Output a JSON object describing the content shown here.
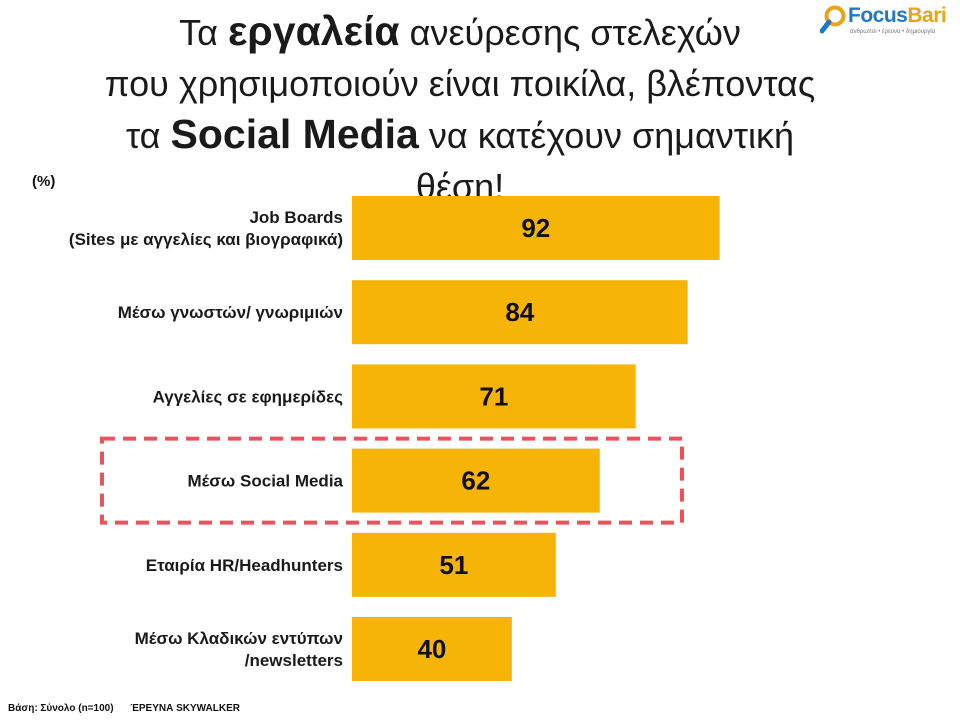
{
  "title": {
    "line1_pre": "Τα ",
    "line1_emph": "εργαλεία",
    "line1_post": " ανεύρεσης στελεχών",
    "line2": "που χρησιμοποιούν είναι ποικίλα, βλέποντας",
    "line3_pre": "τα ",
    "line3_emph": "Social Media",
    "line3_post": " να κατέχουν σημαντική θέση!"
  },
  "logo": {
    "name_part1": "Focus",
    "name_part2": "Bari",
    "tagline": "άνθρωποι • έρευνα • δημιουργία",
    "icon": "magnifier-icon",
    "colors": {
      "part1": "#1f78c8",
      "part2": "#e8a317"
    }
  },
  "unit_label": "(%)",
  "colors": {
    "bar": "#f6b407",
    "highlight_border": "#e8545a"
  },
  "chart_data": {
    "type": "bar",
    "orientation": "horizontal",
    "categories": [
      [
        "Job Boards",
        "(Sites με αγγελίες και βιογραφικά)"
      ],
      [
        "Μέσω γνωστών/ γνωριμιών"
      ],
      [
        "Αγγελίες σε εφημερίδες"
      ],
      [
        "Μέσω Social Media"
      ],
      [
        "Εταιρία  HR/Headhunters"
      ],
      [
        "Μέσω Κλαδικών εντύπων",
        "/newsletters"
      ]
    ],
    "values": [
      92,
      84,
      71,
      62,
      51,
      40
    ],
    "highlighted_index": 3,
    "xlim": [
      0,
      100
    ],
    "grid": false,
    "title": "",
    "xlabel": "",
    "ylabel": ""
  },
  "footer": {
    "base": "Βάση: Σύνολο (n=100)",
    "source": "ΈΡΕΥΝΑ SKYWALKER"
  }
}
